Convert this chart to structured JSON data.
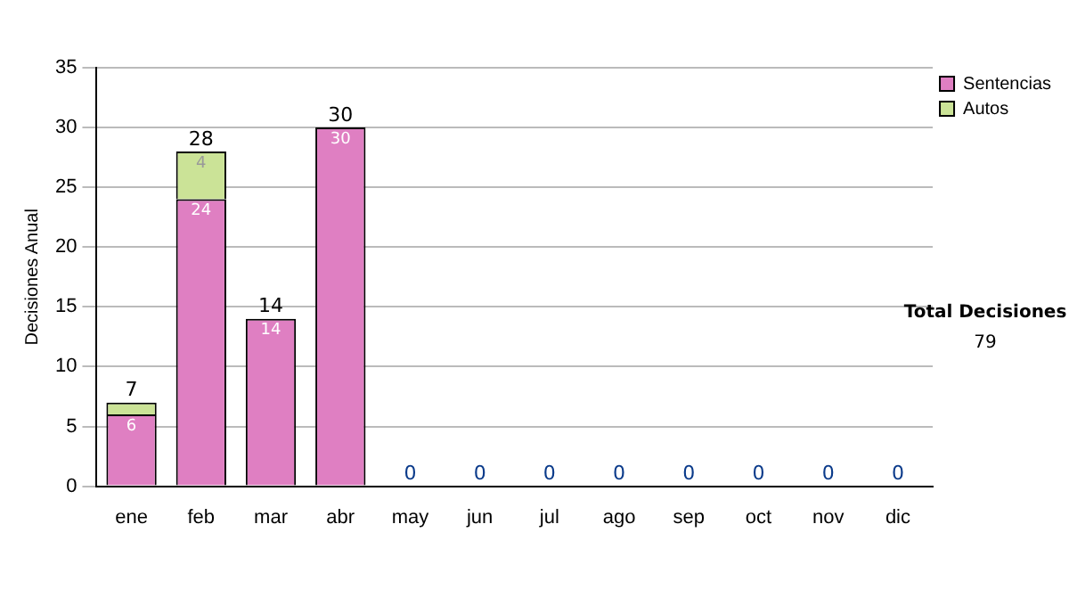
{
  "chart_data": {
    "type": "bar",
    "stacked": true,
    "ylabel": "Decisiones Anual",
    "categories": [
      "ene",
      "feb",
      "mar",
      "abr",
      "may",
      "jun",
      "jul",
      "ago",
      "sep",
      "oct",
      "nov",
      "dic"
    ],
    "series": [
      {
        "name": "Sentencias",
        "color": "#df7fc2",
        "values": [
          6,
          24,
          14,
          30,
          0,
          0,
          0,
          0,
          0,
          0,
          0,
          0
        ],
        "value_labels": [
          "6",
          "24",
          "14",
          "30",
          null,
          null,
          null,
          null,
          null,
          null,
          null,
          null
        ]
      },
      {
        "name": "Autos",
        "color": "#cbe397",
        "values": [
          1,
          4,
          0,
          0,
          0,
          0,
          0,
          0,
          0,
          0,
          0,
          0
        ],
        "value_labels": [
          null,
          "4",
          null,
          null,
          null,
          null,
          null,
          null,
          null,
          null,
          null,
          null
        ]
      }
    ],
    "totals": [
      "7",
      "28",
      "14",
      "30",
      "0",
      "0",
      "0",
      "0",
      "0",
      "0",
      "0",
      "0"
    ],
    "ylim": [
      0,
      35
    ],
    "yticks": [
      0,
      5,
      10,
      15,
      20,
      25,
      30,
      35
    ],
    "grid": "y",
    "legend": "right",
    "annotations": [
      "Total Decisiones",
      "79"
    ]
  }
}
